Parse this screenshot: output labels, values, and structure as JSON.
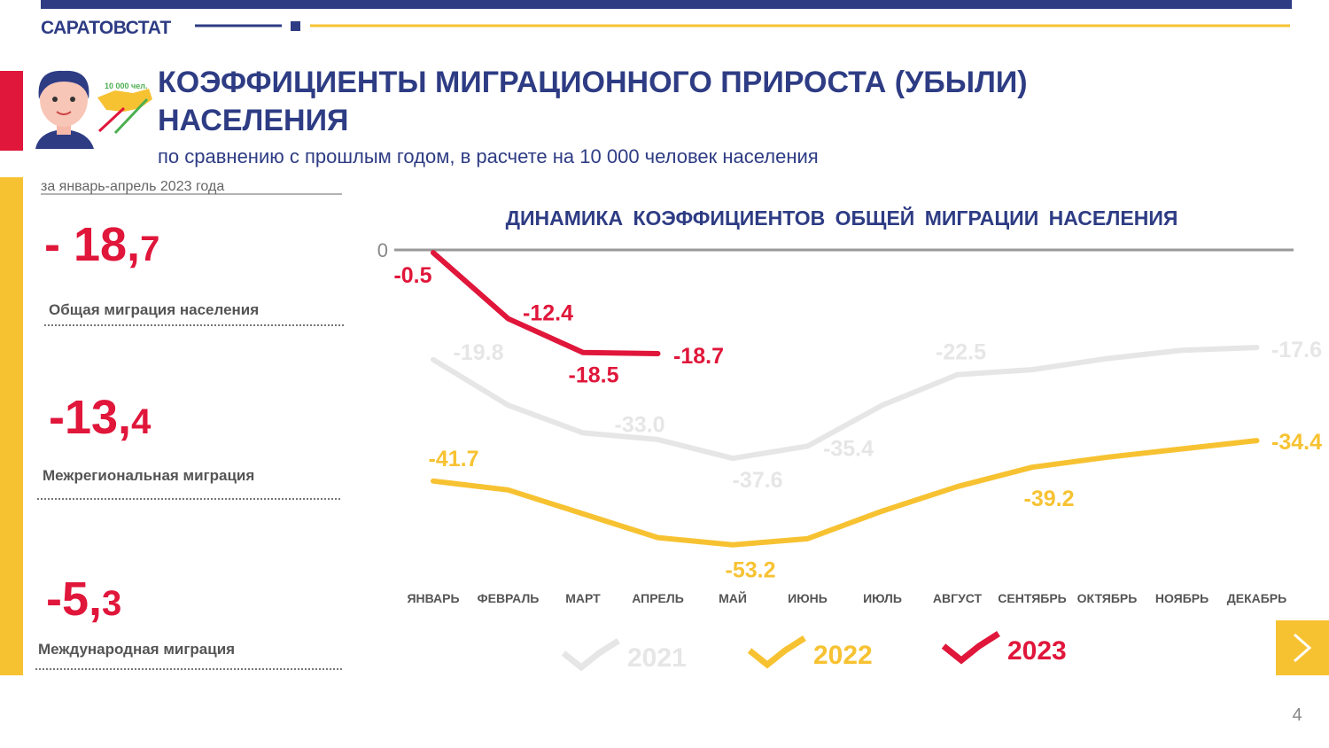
{
  "header": {
    "brand": "САРАТОВСТАТ",
    "icon_caption": "10 000 чел.",
    "title_lines": [
      "КОЭФФИЦИЕНТЫ МИГРАЦИОННОГО ПРИРОСТА (УБЫЛИ)",
      "НАСЕЛЕНИЯ"
    ],
    "subtitle": "по сравнению с прошлым годом, в расчете на 10 000 человек населения"
  },
  "left_panel": {
    "period": "за январь-апрель 2023 года",
    "stats": [
      {
        "main": "- 18,",
        "decimal": "7",
        "label": "Общая миграция населения"
      },
      {
        "main": "-13,",
        "decimal": "4",
        "label": "Межрегиональная миграция"
      },
      {
        "main": "-5,",
        "decimal": "3",
        "label": "Международная миграция"
      }
    ]
  },
  "chart_data": {
    "type": "line",
    "title": "ДИНАМИКА КОЭФФИЦИЕНТОВ ОБЩЕЙ МИГРАЦИИ НАСЕЛЕНИЯ",
    "categories": [
      "ЯНВАРЬ",
      "ФЕВРАЛЬ",
      "МАРТ",
      "АПРЕЛЬ",
      "МАЙ",
      "ИЮНЬ",
      "ИЮЛЬ",
      "АВГУСТ",
      "СЕНТЯБРЬ",
      "ОКТЯБРЬ",
      "НОЯБРЬ",
      "ДЕКАБРЬ"
    ],
    "ylim": [
      -55,
      0
    ],
    "yticks": [
      0
    ],
    "series": [
      {
        "name": "2021",
        "color": "#e6e6e6",
        "values": [
          -19.8,
          -28.0,
          -33.0,
          -34.2,
          -37.6,
          -35.4,
          -28.0,
          -22.5,
          -21.6,
          -19.6,
          -18.1,
          -17.6
        ],
        "value_labels": [
          "-19.8",
          null,
          "-33.0",
          null,
          "-37.6",
          "-35.4",
          null,
          "-22.5",
          null,
          null,
          null,
          "-17.6"
        ]
      },
      {
        "name": "2022",
        "color": "#f7c232",
        "values": [
          -41.7,
          -43.3,
          -47.6,
          -51.9,
          -53.2,
          -52.1,
          -47.1,
          -42.7,
          -39.2,
          -37.4,
          -35.9,
          -34.4
        ],
        "value_labels": [
          "-41.7",
          null,
          null,
          null,
          "-53.2",
          null,
          null,
          null,
          "-39.2",
          null,
          null,
          "-34.4"
        ]
      },
      {
        "name": "2023",
        "color": "#e0163a",
        "values": [
          -0.5,
          -12.4,
          -18.5,
          -18.7,
          null,
          null,
          null,
          null,
          null,
          null,
          null,
          null
        ],
        "value_labels": [
          "-0.5",
          "-12.4",
          "-18.5",
          "-18.7",
          null,
          null,
          null,
          null,
          null,
          null,
          null,
          null
        ]
      }
    ]
  },
  "page_number": "4"
}
